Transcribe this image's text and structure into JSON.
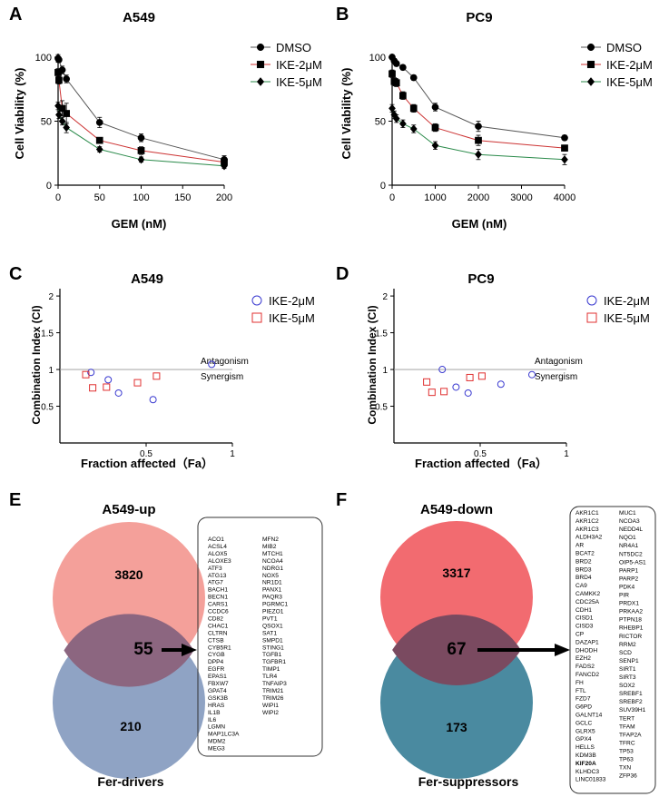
{
  "chart_data": [
    {
      "panel": "A",
      "type": "line",
      "title": "A549",
      "xlabel": "GEM (nM)",
      "ylabel": "Cell Viability (%)",
      "xlim": [
        0,
        200
      ],
      "ylim": [
        0,
        100
      ],
      "xticks": [
        0,
        50,
        100,
        150,
        200
      ],
      "yticks": [
        0,
        50,
        100
      ],
      "legend_position": "top-right",
      "series": [
        {
          "name": "DMSO",
          "marker": "circle",
          "color": "#000000",
          "line_color": "#555555",
          "x": [
            0,
            1,
            5,
            10,
            50,
            100,
            200
          ],
          "y": [
            99,
            98,
            90,
            83,
            49,
            37,
            20
          ],
          "err": [
            3,
            2,
            3,
            3,
            4,
            3,
            3
          ]
        },
        {
          "name": "IKE-2μM",
          "marker": "square",
          "color": "#000000",
          "line_color": "#cc3333",
          "x": [
            0,
            1,
            5,
            10,
            50,
            100,
            200
          ],
          "y": [
            88,
            82,
            60,
            56,
            35,
            27,
            18
          ],
          "err": [
            3,
            3,
            6,
            8,
            2,
            3,
            3
          ]
        },
        {
          "name": "IKE-5μM",
          "marker": "diamond",
          "color": "#000000",
          "line_color": "#2a8a4a",
          "x": [
            0,
            1,
            5,
            10,
            50,
            100,
            200
          ],
          "y": [
            62,
            55,
            50,
            45,
            28,
            20,
            15
          ],
          "err": [
            3,
            3,
            3,
            4,
            2,
            2,
            2
          ]
        }
      ]
    },
    {
      "panel": "B",
      "type": "line",
      "title": "PC9",
      "xlabel": "GEM (nM)",
      "ylabel": "Cell Viability (%)",
      "xlim": [
        0,
        4000
      ],
      "ylim": [
        0,
        100
      ],
      "xticks": [
        0,
        1000,
        2000,
        3000,
        4000
      ],
      "yticks": [
        0,
        50,
        100
      ],
      "legend_position": "top-right",
      "series": [
        {
          "name": "DMSO",
          "marker": "circle",
          "color": "#000000",
          "line_color": "#555555",
          "x": [
            0,
            50,
            100,
            250,
            500,
            1000,
            2000,
            4000
          ],
          "y": [
            100,
            97,
            95,
            92,
            84,
            61,
            46,
            37
          ],
          "err": [
            2,
            2,
            2,
            2,
            2,
            3,
            4,
            2
          ]
        },
        {
          "name": "IKE-2μM",
          "marker": "square",
          "color": "#000000",
          "line_color": "#cc3333",
          "x": [
            0,
            50,
            100,
            250,
            500,
            1000,
            2000,
            4000
          ],
          "y": [
            87,
            81,
            80,
            70,
            60,
            45,
            35,
            29
          ],
          "err": [
            3,
            3,
            3,
            3,
            3,
            3,
            4,
            2
          ]
        },
        {
          "name": "IKE-5μM",
          "marker": "diamond",
          "color": "#000000",
          "line_color": "#2a8a4a",
          "x": [
            0,
            50,
            100,
            250,
            500,
            1000,
            2000,
            4000
          ],
          "y": [
            60,
            55,
            52,
            48,
            44,
            31,
            24,
            20
          ],
          "err": [
            3,
            3,
            3,
            3,
            3,
            3,
            4,
            4
          ]
        }
      ]
    },
    {
      "panel": "C",
      "type": "scatter",
      "title": "A549",
      "xlabel": "Fraction affected（Fa）",
      "ylabel": "Combination Index (CI)",
      "xlim": [
        0,
        1
      ],
      "ylim": [
        0,
        2.1
      ],
      "xticks": [
        0.5,
        1
      ],
      "xticklabels": [
        "0.5",
        "1"
      ],
      "yticks": [
        0.5,
        1,
        1.5,
        2
      ],
      "yticklabels": [
        "0.5",
        "1",
        "1.5",
        "2"
      ],
      "reference_line": 1,
      "antagonism_label": "Antagonism",
      "synergism_label": "Synergism",
      "legend_position": "top-right",
      "series": [
        {
          "name": "IKE-2μM",
          "marker": "circle",
          "color": "#3a3ad0",
          "x": [
            0.18,
            0.28,
            0.34,
            0.54,
            0.88
          ],
          "y": [
            0.96,
            0.86,
            0.68,
            0.59,
            1.07
          ]
        },
        {
          "name": "IKE-5μM",
          "marker": "square",
          "color": "#e03030",
          "x": [
            0.15,
            0.19,
            0.27,
            0.45,
            0.56
          ],
          "y": [
            0.93,
            0.75,
            0.76,
            0.82,
            0.91
          ]
        }
      ]
    },
    {
      "panel": "D",
      "type": "scatter",
      "title": "PC9",
      "xlabel": "Fraction affected（Fa）",
      "ylabel": "Combination Index (CI)",
      "xlim": [
        0,
        1
      ],
      "ylim": [
        0,
        2.1
      ],
      "xticks": [
        0.5,
        1
      ],
      "xticklabels": [
        "0.5",
        "1"
      ],
      "yticks": [
        0.5,
        1,
        1.5,
        2
      ],
      "yticklabels": [
        "0.5",
        "1",
        "1.5",
        "2"
      ],
      "reference_line": 1,
      "antagonism_label": "Antagonism",
      "synergism_label": "Synergism",
      "legend_position": "top-right",
      "series": [
        {
          "name": "IKE-2μM",
          "marker": "circle",
          "color": "#3a3ad0",
          "x": [
            0.28,
            0.36,
            0.43,
            0.62,
            0.8
          ],
          "y": [
            1.0,
            0.76,
            0.68,
            0.8,
            0.93
          ]
        },
        {
          "name": "IKE-5μM",
          "marker": "square",
          "color": "#e03030",
          "x": [
            0.19,
            0.22,
            0.29,
            0.44,
            0.51
          ],
          "y": [
            0.83,
            0.69,
            0.7,
            0.89,
            0.91
          ]
        }
      ]
    }
  ],
  "panel_letters": {
    "a": "A",
    "b": "B",
    "c": "C",
    "d": "D",
    "e": "E",
    "f": "F"
  },
  "venn_e": {
    "title": "A549-up",
    "top_count": "3820",
    "overlap_count": "55",
    "bottom_count": "210",
    "bottom_label": "Fer-drivers",
    "top_color": "#f4a09a",
    "bottom_color": "#8fa3c4",
    "genes_col1": [
      "ACO1",
      "ACSL4",
      "ALOX5",
      "ALOXE3",
      "ATF3",
      "ATG13",
      "ATG7",
      "BACH1",
      "BECN1",
      "CARS1",
      "CCDC6",
      "CD82",
      "CHAC1",
      "CLTRN",
      "CTSB",
      "CYB5R1",
      "CYGB",
      "DPP4",
      "EGFR",
      "EPAS1",
      "FBXW7",
      "GPAT4",
      "GSK3B",
      "HRAS",
      "IL1B",
      "IL6",
      "LGMN",
      "MAP1LC3A",
      "MDM2",
      "MEG3"
    ],
    "genes_col2": [
      "MFN2",
      "MIB2",
      "MTCH1",
      "NCOA4",
      "NDRG1",
      "NOX5",
      "NR1D1",
      "PANX1",
      "PAQR3",
      "PGRMC1",
      "PIEZO1",
      "PVT1",
      "QSOX1",
      "SAT1",
      "SMPD1",
      "STING1",
      "TGFB1",
      "TGFBR1",
      "TIMP1",
      "TLR4",
      "TNFAIP3",
      "TRIM21",
      "TRIM26",
      "WIPI1",
      "WIPI2"
    ]
  },
  "venn_f": {
    "title": "A549-down",
    "top_count": "3317",
    "overlap_count": "67",
    "bottom_count": "173",
    "bottom_label": "Fer-suppressors",
    "top_color": "#f26b70",
    "bottom_color": "#4a8aa0",
    "highlight_gene": "KIF20A",
    "genes_col1": [
      "AKR1C1",
      "AKR1C2",
      "AKR1C3",
      "ALDH3A2",
      "AR",
      "BCAT2",
      "BRD2",
      "BRD3",
      "BRD4",
      "CA9",
      "CAMKK2",
      "CDC25A",
      "CDH1",
      "CISD1",
      "CISD3",
      "CP",
      "DAZAP1",
      "DHODH",
      "EZH2",
      "FADS2",
      "FANCD2",
      "FH",
      "FTL",
      "FZD7",
      "G6PD",
      "GALNT14",
      "GCLC",
      "GLRX5",
      "GPX4",
      "HELLS",
      "KDM3B",
      "KIF20A",
      "KLHDC3",
      "LINC01833"
    ],
    "genes_col2": [
      "MUC1",
      "NCOA3",
      "NEDD4L",
      "NQO1",
      "NR4A1",
      "NT5DC2",
      "OIP5-AS1",
      "PARP1",
      "PARP2",
      "PDK4",
      "PIR",
      "PRDX1",
      "PRKAA2",
      "PTPN18",
      "RHEBP1",
      "RICTOR",
      "RRM2",
      "SCD",
      "SENP1",
      "SIRT1",
      "SIRT3",
      "SOX2",
      "SREBF1",
      "SREBF2",
      "SUV39H1",
      "TERT",
      "TFAM",
      "TFAP2A",
      "TFRC",
      "TP53",
      "TP63",
      "TXN",
      "ZFP36"
    ]
  }
}
